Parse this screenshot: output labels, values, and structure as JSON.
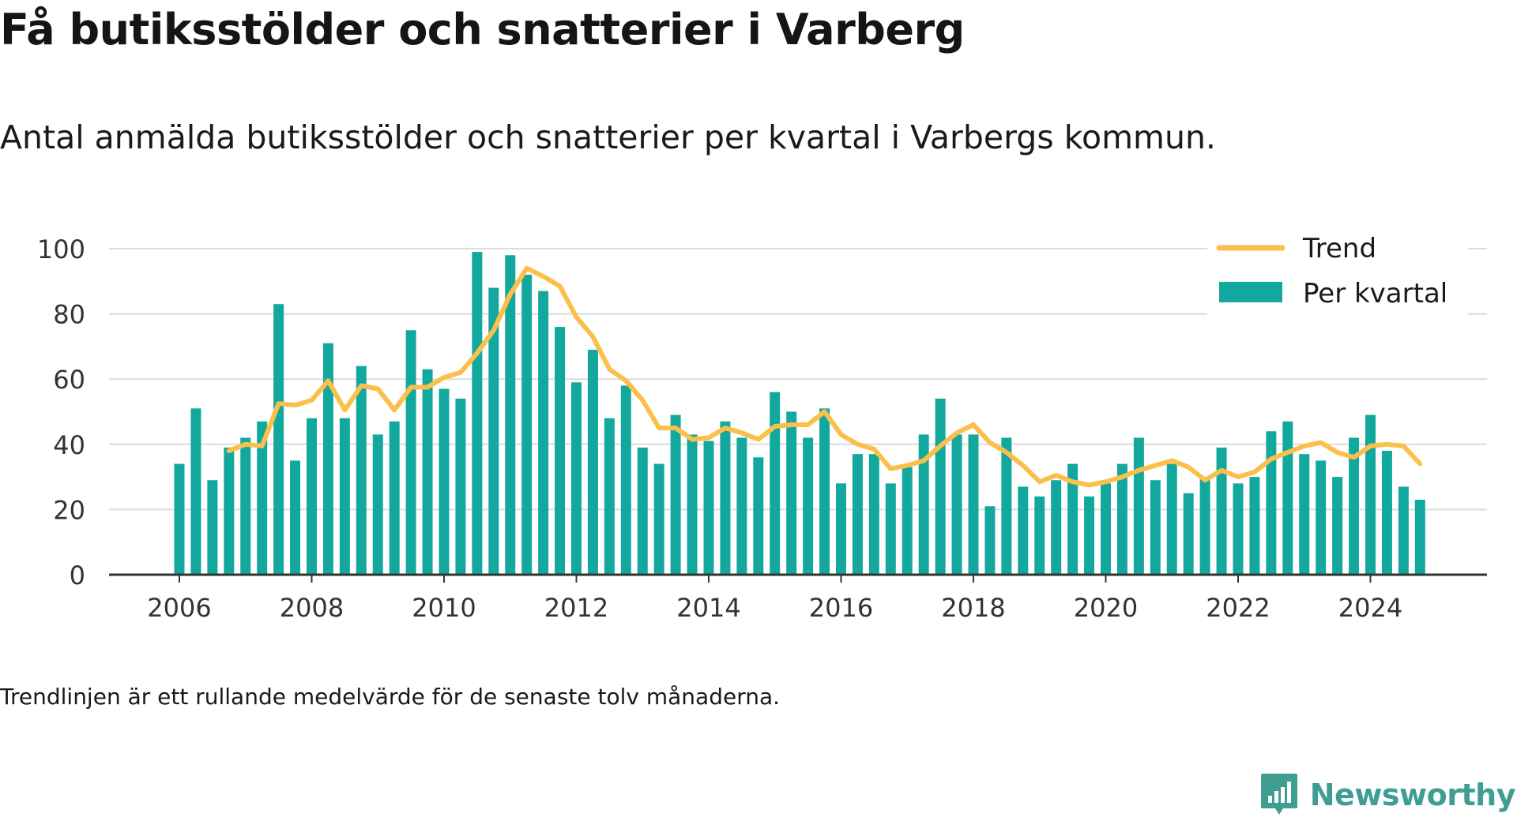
{
  "title": "Få butiksstölder och snatterier i Varberg",
  "subtitle": "Antal anmälda butiksstölder och snatterier per kvartal i Varbergs kommun.",
  "footnote": "Trendlinjen är ett rullande medelvärde för de senaste tolv månaderna.",
  "brand": {
    "name": "Newsworthy",
    "icon": "newsworthy-logo-icon"
  },
  "colors": {
    "bars": "#13a89e",
    "trend": "#fbc04b",
    "grid": "#dcdcdc",
    "axis": "#333333",
    "brand": "#3f9d92"
  },
  "chart_data": {
    "type": "bar",
    "x_start": 2006.0,
    "x_step": 0.25,
    "values": [
      34,
      51,
      29,
      39,
      42,
      47,
      83,
      35,
      48,
      71,
      48,
      64,
      43,
      47,
      75,
      63,
      57,
      54,
      99,
      88,
      98,
      92,
      87,
      76,
      59,
      69,
      48,
      58,
      39,
      34,
      49,
      43,
      41,
      47,
      42,
      36,
      56,
      50,
      42,
      51,
      28,
      37,
      37,
      28,
      33,
      43,
      54,
      43,
      43,
      21,
      42,
      27,
      24,
      29,
      34,
      24,
      28,
      34,
      42,
      29,
      34,
      25,
      30,
      39,
      28,
      30,
      44,
      47,
      37,
      35,
      30,
      42,
      49,
      38,
      27,
      23
    ],
    "series": [
      {
        "name": "Per kvartal",
        "type": "bar"
      },
      {
        "name": "Trend",
        "type": "line",
        "x_start": 2006.75,
        "x_step": 0.25,
        "values": [
          38,
          40,
          39.5,
          52.5,
          52,
          53.5,
          59.5,
          50.5,
          58,
          57,
          50.5,
          57.5,
          57.5,
          60.5,
          62,
          68,
          75,
          86,
          94,
          91.5,
          88.5,
          79,
          73,
          63,
          59.5,
          53.5,
          45,
          45,
          41.5,
          42,
          45,
          43.5,
          41.5,
          45.5,
          46,
          46,
          50,
          43,
          40,
          38.5,
          32.5,
          33.5,
          35,
          39.5,
          43.5,
          46,
          40.5,
          37.5,
          33.5,
          28.5,
          30.5,
          28.5,
          27.5,
          28.5,
          30,
          32,
          33.5,
          35,
          33,
          29,
          32,
          30,
          31.5,
          35.5,
          37.5,
          39.5,
          40.5,
          37.5,
          36,
          39.5,
          40,
          39.5,
          34
        ]
      }
    ],
    "xticks": [
      "2006",
      "2008",
      "2010",
      "2012",
      "2014",
      "2016",
      "2018",
      "2020",
      "2022",
      "2024"
    ],
    "yticks": [
      "0",
      "20",
      "40",
      "60",
      "80",
      "100"
    ],
    "ylim": [
      0,
      100
    ],
    "xlim": [
      2005.0,
      2025.6
    ],
    "grid": true,
    "legend": {
      "position": "top-right",
      "entries": [
        "Trend",
        "Per kvartal"
      ]
    }
  }
}
